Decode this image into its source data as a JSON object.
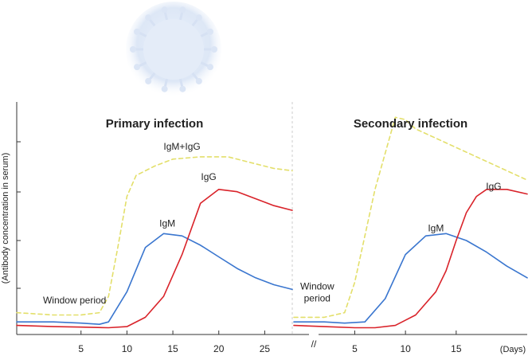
{
  "chart_data": {
    "type": "line",
    "ylabel": "(Antibody concentration in serum)",
    "x_unit_label": "(Days)",
    "x_break_symbol": "//",
    "grid": false,
    "colors": {
      "IgM": "#3a76cf",
      "IgG": "#d9232a",
      "IgM+IgG": "#e3df6a",
      "axis": "#333333",
      "divider": "#cccccc"
    },
    "panels": [
      {
        "title": "Primary infection",
        "window_label": "Window period",
        "xlim": [
          -2,
          28
        ],
        "xticks": [
          5,
          10,
          15,
          20,
          25
        ],
        "ylim": [
          0,
          100
        ],
        "series": [
          {
            "name": "IgM",
            "label": "IgM",
            "style": "solid",
            "x": [
              -2,
              2,
              5,
              7,
              8,
              10,
              12,
              14,
              16,
              18,
              20,
              22,
              24,
              26,
              28
            ],
            "y": [
              3,
              3,
              2.5,
              2,
              3,
              16,
              35,
              41,
              40,
              36,
              31,
              26,
              22,
              19,
              17
            ]
          },
          {
            "name": "IgG",
            "label": "IgG",
            "style": "solid",
            "x": [
              -2,
              2,
              5,
              8,
              10,
              12,
              14,
              16,
              18,
              20,
              22,
              24,
              26,
              28
            ],
            "y": [
              1.5,
              1,
              0.8,
              0.5,
              1,
              5,
              14,
              32,
              54,
              60,
              59,
              56,
              53,
              51
            ]
          },
          {
            "name": "IgM+IgG",
            "label": "IgM+IgG",
            "style": "dashed",
            "x": [
              -2,
              2,
              5,
              7,
              8,
              9,
              10,
              11,
              13,
              15,
              18,
              21,
              24,
              26,
              28
            ],
            "y": [
              7,
              6,
              6,
              7,
              14,
              35,
              57,
              66,
              70,
              73,
              74,
              74,
              71,
              69,
              68
            ]
          }
        ],
        "label_points": {
          "IgM": [
            14.4,
            44
          ],
          "IgG": [
            18.9,
            64
          ],
          "IgM+IgG": [
            16,
            77
          ]
        },
        "window_point": [
          4.3,
          11
        ]
      },
      {
        "title": "Secondary infection",
        "window_label_lines": [
          "Window",
          "period"
        ],
        "xlim": [
          -1,
          22
        ],
        "xticks": [
          5,
          10,
          15
        ],
        "ylim": [
          0,
          100
        ],
        "series": [
          {
            "name": "IgM",
            "label": "IgM",
            "style": "solid",
            "x": [
              -1,
              2,
              4,
              6,
              8,
              10,
              12,
              14,
              16,
              18,
              20,
              22
            ],
            "y": [
              3,
              3,
              2.5,
              3,
              13,
              32,
              40,
              41,
              38,
              33,
              27,
              22
            ]
          },
          {
            "name": "IgG",
            "label": "IgG",
            "style": "solid",
            "x": [
              -1,
              2,
              5,
              7,
              9,
              11,
              13,
              14,
              15,
              16,
              17,
              18,
              20,
              22
            ],
            "y": [
              1.5,
              1,
              0.5,
              0.5,
              1.5,
              6,
              16,
              25,
              38,
              50,
              57,
              60,
              60,
              58
            ]
          },
          {
            "name": "IgM+IgG",
            "label": "IgM+IgG",
            "style": "dashed",
            "x": [
              -1,
              2,
              4,
              5,
              7,
              9,
              10,
              11,
              14,
              17,
              20,
              22
            ],
            "y": [
              5,
              5,
              7,
              20,
              60,
              91,
              90,
              86,
              80,
              74,
              68,
              64
            ]
          }
        ],
        "label_points": {
          "IgM": [
            13,
            42
          ],
          "IgG": [
            18.7,
            60
          ]
        },
        "window_point": [
          1.3,
          17
        ]
      }
    ]
  }
}
